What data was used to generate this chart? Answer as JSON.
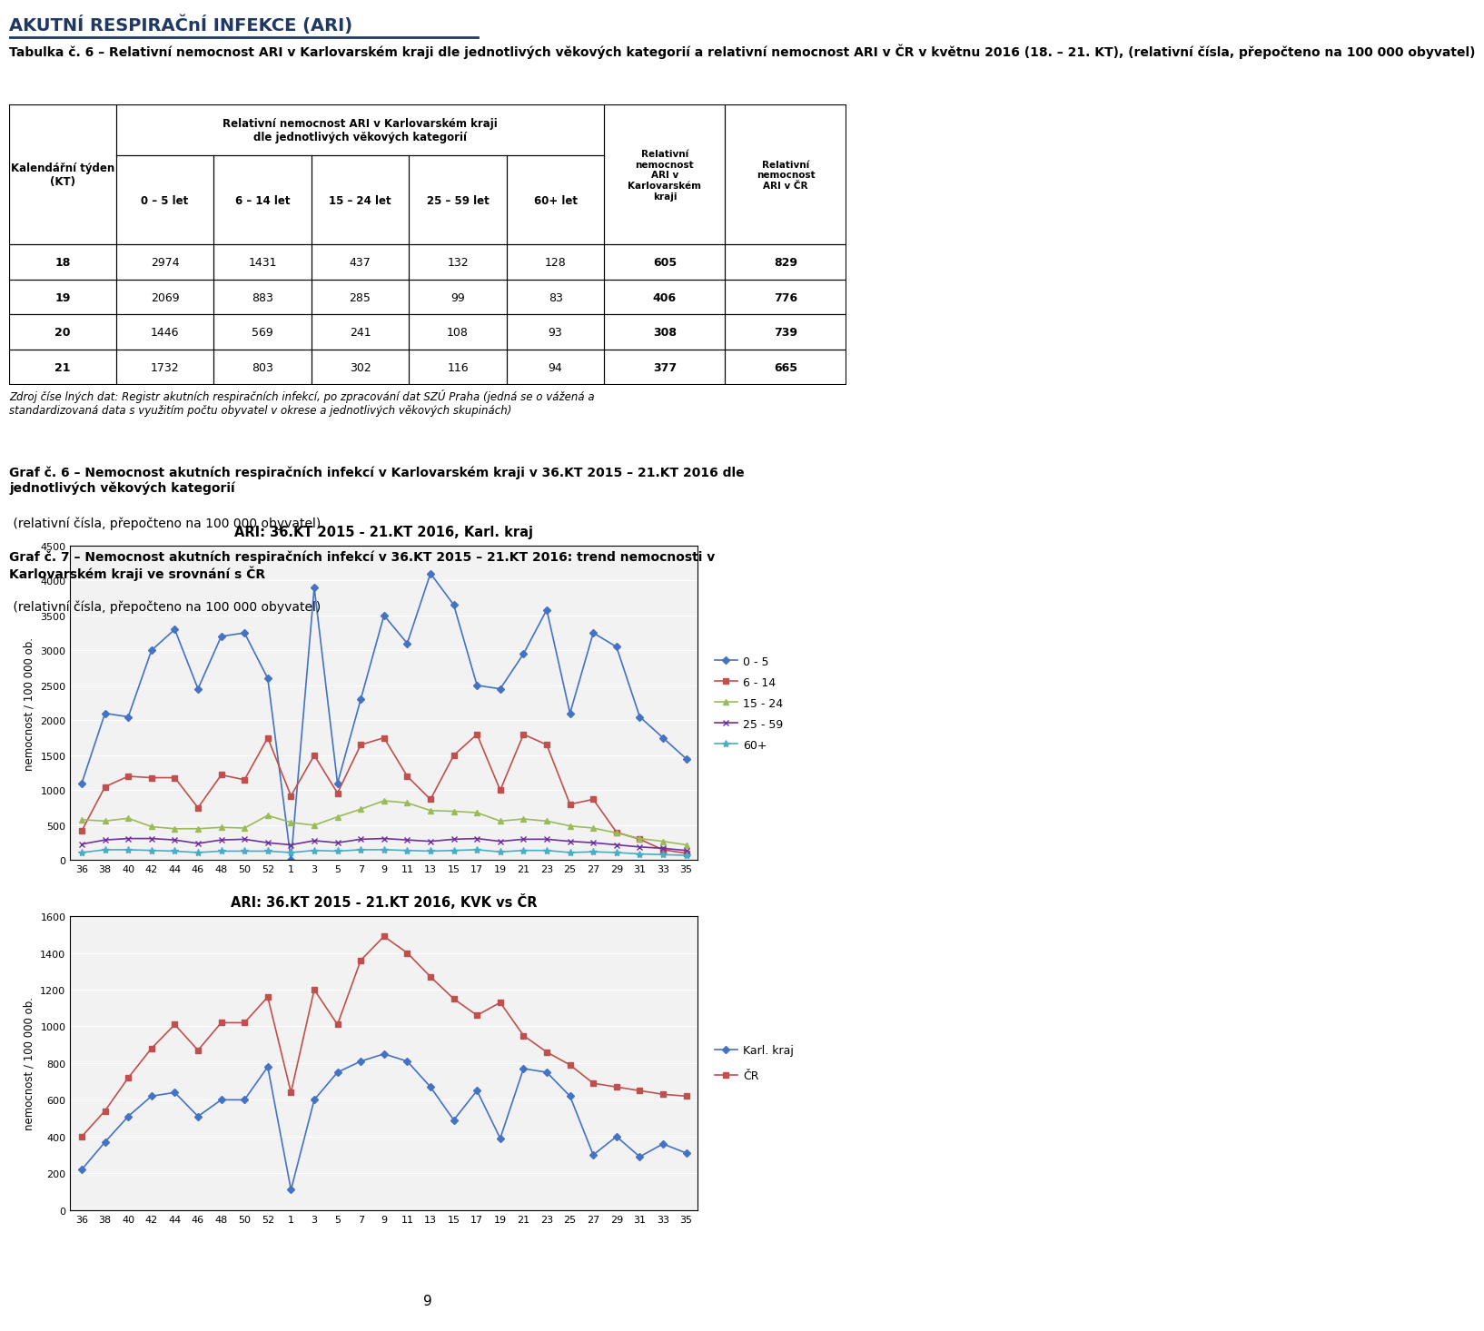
{
  "title_main": "AKUTNÍ RESPIRAČnÍ INFEKCE (ARI)",
  "table_title_bold": "Tabulka č. 6 – Relativní nemocnost ARI v Karlovarském kraji dle jednotlivých věkových kategorií a relativní nemocnost ARI v ČR v květnu 2016 (18. – 21. KT),",
  "table_title_normal": " (relativní čísla, přepočteno na 100 000 obyvatel)",
  "col_header_main": "Relativní nemocnost ARI v Karlovarském kraji\ndle jednotlivých věkových kategorií",
  "col_headers": [
    "Kalendářní týden\n(KT)",
    "0 – 5 let",
    "6 – 14 let",
    "15 – 24 let",
    "25 – 59 let",
    "60+ let",
    "Relativní\nnemocnost\nARI v\nKarlovarském\nkraji",
    "Relativní\nnemocnost\nARI v ČR"
  ],
  "table_data": [
    [
      18,
      2974,
      1431,
      437,
      132,
      128,
      605,
      829
    ],
    [
      19,
      2069,
      883,
      285,
      99,
      83,
      406,
      776
    ],
    [
      20,
      1446,
      569,
      241,
      108,
      93,
      308,
      739
    ],
    [
      21,
      1732,
      803,
      302,
      116,
      94,
      377,
      665
    ]
  ],
  "footnote": "Zdroj číse lných dat: Registr akutních respiračních infekcí, po zpracování dat SZÚ Praha (jedná se o vážená a\nstandardizovaná data s využitím počtu obyvatel v okrese a jednotlivých věkových skupinách)",
  "graf6_title_bold": "Graf č. 6 – Nemocnost akutních respiračních infekcí v Karlovarském kraji v 36.KT 2015 – 21.KT 2016 dle\njednotlivých věkových kategorií",
  "graf6_title_normal": " (relativní čísla, přepočteno na 100 000 obyvatel)",
  "graf7_title_bold": "Graf č. 7 – Nemocnost akutních respiračních infekcí v 36.KT 2015 – 21.KT 2016: trend nemocnosti v\nKarlovarském kraji ve srovnání s ČR",
  "graf7_title_normal": " (relativní čísla, přepočteno na 100 000 obyvatel)",
  "chart1_title": "ARI: 36.KT 2015 - 21.KT 2016, Karl. kraj",
  "chart2_title": "ARI: 36.KT 2015 - 21.KT 2016, KVK vs ČR",
  "x_labels": [
    "36",
    "38",
    "40",
    "42",
    "44",
    "46",
    "48",
    "50",
    "52",
    "1",
    "3",
    "5",
    "7",
    "9",
    "11",
    "13",
    "15",
    "17",
    "19",
    "21",
    "23",
    "25",
    "27",
    "29",
    "31",
    "33",
    "35"
  ],
  "ylabel": "nemocnost / 100 000 ob.",
  "chart1_ylim": [
    0,
    4500
  ],
  "chart1_yticks": [
    0,
    500,
    1000,
    1500,
    2000,
    2500,
    3000,
    3500,
    4000,
    4500
  ],
  "chart2_ylim": [
    0,
    1600
  ],
  "chart2_yticks": [
    0,
    200,
    400,
    600,
    800,
    1000,
    1200,
    1400,
    1600
  ],
  "series_0_5": [
    1100,
    2100,
    2050,
    3000,
    3300,
    2450,
    3200,
    3250,
    2600,
    0,
    3900,
    1100,
    2300,
    3500,
    3100,
    4100,
    3650,
    2500,
    2450,
    2950,
    3580,
    2100,
    3250,
    3050,
    2050,
    1750,
    1450
  ],
  "series_6_14": [
    420,
    1050,
    1200,
    1180,
    1180,
    750,
    1220,
    1150,
    1750,
    920,
    1500,
    960,
    1650,
    1750,
    1200,
    870,
    1500,
    1800,
    1000,
    1800,
    1650,
    800,
    870,
    400,
    300,
    150,
    100
  ],
  "series_15_24": [
    580,
    560,
    600,
    480,
    450,
    450,
    470,
    460,
    640,
    540,
    500,
    620,
    730,
    850,
    820,
    710,
    700,
    680,
    560,
    590,
    560,
    490,
    460,
    390,
    310,
    270,
    220
  ],
  "series_25_59": [
    230,
    290,
    310,
    310,
    290,
    240,
    290,
    300,
    250,
    220,
    280,
    250,
    300,
    310,
    290,
    270,
    300,
    310,
    270,
    300,
    300,
    270,
    250,
    220,
    190,
    170,
    140
  ],
  "series_60plus": [
    110,
    150,
    150,
    140,
    130,
    110,
    130,
    130,
    130,
    110,
    140,
    130,
    150,
    150,
    140,
    130,
    140,
    150,
    120,
    140,
    140,
    110,
    120,
    110,
    90,
    80,
    70
  ],
  "kvk_series": [
    220,
    370,
    510,
    620,
    640,
    510,
    600,
    600,
    780,
    110,
    600,
    750,
    810,
    850,
    810,
    670,
    490,
    650,
    390,
    770,
    750,
    620,
    300,
    400,
    290,
    360,
    310
  ],
  "cr_series": [
    400,
    540,
    720,
    880,
    1010,
    870,
    1020,
    1020,
    1160,
    640,
    1200,
    1010,
    1360,
    1490,
    1400,
    1270,
    1150,
    1060,
    1130,
    950,
    860,
    790,
    690,
    670,
    650,
    630,
    620
  ],
  "color_0_5": "#4472C4",
  "color_6_14": "#C0504D",
  "color_15_24": "#9BBB59",
  "color_25_59": "#7030A0",
  "color_60plus": "#4BACC6",
  "color_kvk": "#4472C4",
  "color_cr": "#C0504D",
  "page_number": "9",
  "bg_color": "#ffffff",
  "chart_border": "#d0d0d0"
}
